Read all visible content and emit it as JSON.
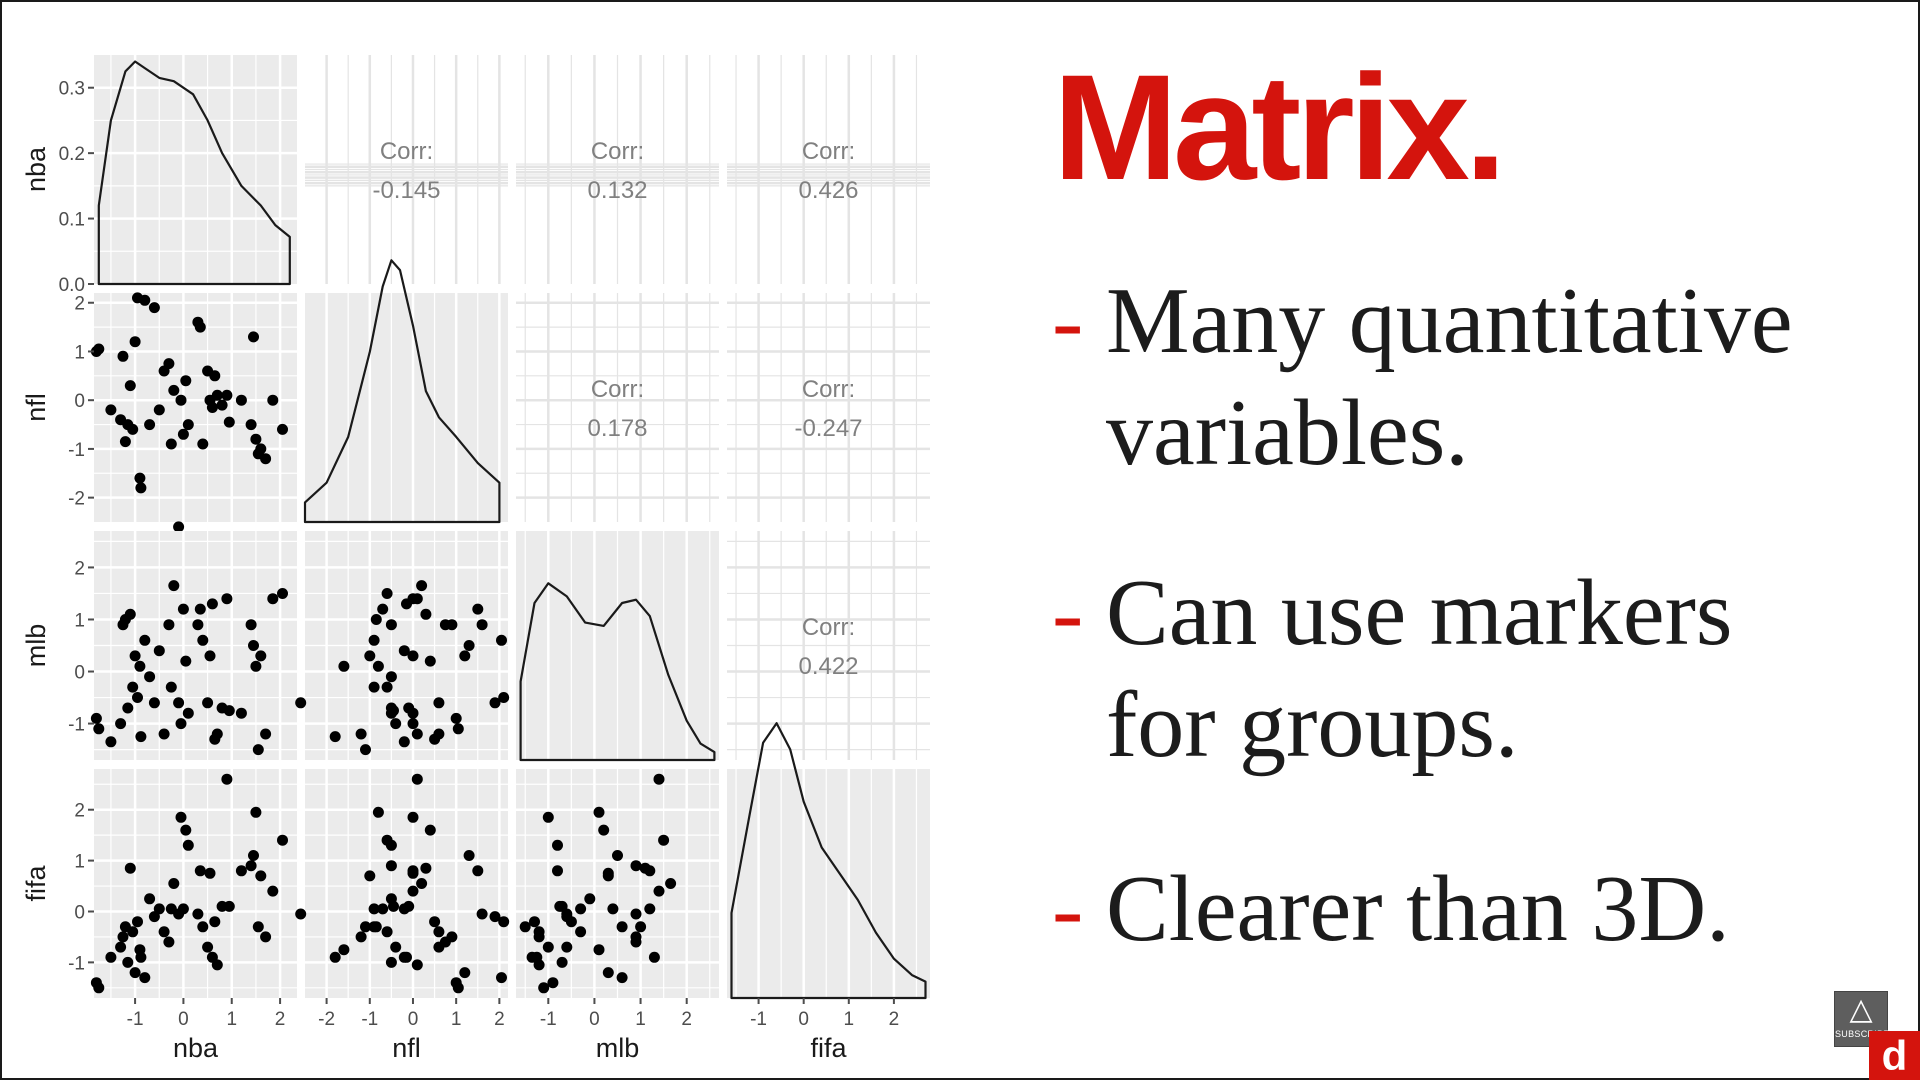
{
  "slide": {
    "heading": "Matrix.",
    "bullets": [
      {
        "dash": "-",
        "lines": [
          "Many quantitative",
          "variables."
        ]
      },
      {
        "dash": "-",
        "lines": [
          "Can use markers",
          "for groups."
        ]
      },
      {
        "dash": "-",
        "lines": [
          "Clearer than 3D."
        ]
      }
    ]
  },
  "badge": {
    "label": "SUBSCRIBE",
    "icon": "flame-icon"
  },
  "logo": {
    "letter": "d",
    "color": "#d4140d"
  },
  "colors": {
    "accent": "#d4140d",
    "panel": "#ebebeb",
    "grid": "#ffffff",
    "text": "#1c1c1c"
  },
  "chart_data": {
    "type": "scatter-matrix",
    "variables": [
      "nba",
      "nfl",
      "mlb",
      "fifa"
    ],
    "corr_label": "Corr:",
    "correlations": [
      {
        "row": "nba",
        "col": "nfl",
        "label": "-0.145"
      },
      {
        "row": "nba",
        "col": "mlb",
        "label": "0.132"
      },
      {
        "row": "nba",
        "col": "fifa",
        "label": "0.426"
      },
      {
        "row": "nfl",
        "col": "mlb",
        "label": "0.178"
      },
      {
        "row": "nfl",
        "col": "fifa",
        "label": "-0.247"
      },
      {
        "row": "mlb",
        "col": "fifa",
        "label": "0.422"
      }
    ],
    "x_ticks": {
      "nba": [
        "-1",
        "0",
        "1",
        "2"
      ],
      "nfl": [
        "-2",
        "-1",
        "0",
        "1",
        "2"
      ],
      "mlb": [
        "-1",
        "0",
        "1",
        "2"
      ],
      "fifa": [
        "-1",
        "0",
        "1",
        "2"
      ]
    },
    "y_ticks": {
      "nba": [
        "0.0",
        "0.1",
        "0.2",
        "0.3"
      ],
      "nfl": [
        "-2",
        "-1",
        "0",
        "1",
        "2"
      ],
      "mlb": [
        "-1",
        "0",
        "1",
        "2"
      ],
      "fifa": [
        "-1",
        "0",
        "1",
        "2"
      ]
    },
    "density_ylim": [
      0,
      0.35
    ],
    "ranges": {
      "nba": [
        -1.85,
        2.35
      ],
      "nfl": [
        -2.5,
        2.2
      ],
      "mlb": [
        -1.7,
        2.7
      ],
      "fifa": [
        -1.7,
        2.8
      ]
    },
    "density": {
      "nba": [
        [
          -1.75,
          0.12
        ],
        [
          -1.5,
          0.25
        ],
        [
          -1.2,
          0.325
        ],
        [
          -1.0,
          0.34
        ],
        [
          -0.8,
          0.33
        ],
        [
          -0.5,
          0.315
        ],
        [
          -0.2,
          0.31
        ],
        [
          0.2,
          0.29
        ],
        [
          0.5,
          0.25
        ],
        [
          0.8,
          0.2
        ],
        [
          1.2,
          0.15
        ],
        [
          1.6,
          0.12
        ],
        [
          1.9,
          0.09
        ],
        [
          2.2,
          0.072
        ]
      ],
      "nfl": [
        [
          -2.5,
          0.03
        ],
        [
          -2.0,
          0.06
        ],
        [
          -1.5,
          0.13
        ],
        [
          -1.0,
          0.26
        ],
        [
          -0.7,
          0.36
        ],
        [
          -0.5,
          0.4
        ],
        [
          -0.3,
          0.385
        ],
        [
          0.0,
          0.3
        ],
        [
          0.3,
          0.2
        ],
        [
          0.6,
          0.16
        ],
        [
          1.0,
          0.13
        ],
        [
          1.5,
          0.09
        ],
        [
          2.0,
          0.06
        ]
      ],
      "mlb": [
        [
          -1.6,
          0.12
        ],
        [
          -1.3,
          0.24
        ],
        [
          -1.0,
          0.27
        ],
        [
          -0.6,
          0.25
        ],
        [
          -0.2,
          0.21
        ],
        [
          0.2,
          0.205
        ],
        [
          0.6,
          0.24
        ],
        [
          0.9,
          0.245
        ],
        [
          1.2,
          0.22
        ],
        [
          1.6,
          0.13
        ],
        [
          2.0,
          0.06
        ],
        [
          2.3,
          0.025
        ],
        [
          2.6,
          0.012
        ]
      ],
      "fifa": [
        [
          -1.6,
          0.13
        ],
        [
          -1.2,
          0.28
        ],
        [
          -0.9,
          0.39
        ],
        [
          -0.6,
          0.42
        ],
        [
          -0.3,
          0.38
        ],
        [
          0.0,
          0.3
        ],
        [
          0.4,
          0.23
        ],
        [
          0.8,
          0.19
        ],
        [
          1.2,
          0.15
        ],
        [
          1.6,
          0.1
        ],
        [
          2.0,
          0.06
        ],
        [
          2.4,
          0.035
        ],
        [
          2.7,
          0.025
        ]
      ]
    },
    "observations": [
      {
        "nba": -1.8,
        "nfl": 1.0,
        "mlb": -0.9,
        "fifa": -1.4
      },
      {
        "nba": -1.75,
        "nfl": 1.05,
        "mlb": -1.1,
        "fifa": -1.5
      },
      {
        "nba": -1.5,
        "nfl": -0.2,
        "mlb": -1.35,
        "fifa": -0.9
      },
      {
        "nba": -1.3,
        "nfl": -0.4,
        "mlb": -1.0,
        "fifa": -0.7
      },
      {
        "nba": -1.25,
        "nfl": 0.9,
        "mlb": 0.9,
        "fifa": -0.5
      },
      {
        "nba": -1.2,
        "nfl": -0.85,
        "mlb": 1.0,
        "fifa": -0.3
      },
      {
        "nba": -1.15,
        "nfl": -0.5,
        "mlb": -0.7,
        "fifa": -1.0
      },
      {
        "nba": -1.1,
        "nfl": 0.3,
        "mlb": 1.1,
        "fifa": 0.85
      },
      {
        "nba": -1.05,
        "nfl": -0.6,
        "mlb": -0.3,
        "fifa": -0.4
      },
      {
        "nba": -1.0,
        "nfl": 1.2,
        "mlb": 0.3,
        "fifa": -1.2
      },
      {
        "nba": -0.95,
        "nfl": 2.1,
        "mlb": -0.5,
        "fifa": -0.2
      },
      {
        "nba": -0.9,
        "nfl": -1.6,
        "mlb": 0.1,
        "fifa": -0.75
      },
      {
        "nba": -0.88,
        "nfl": -1.8,
        "mlb": -1.25,
        "fifa": -0.9
      },
      {
        "nba": -0.8,
        "nfl": 2.05,
        "mlb": 0.6,
        "fifa": -1.3
      },
      {
        "nba": -0.7,
        "nfl": -0.5,
        "mlb": -0.1,
        "fifa": 0.25
      },
      {
        "nba": -0.6,
        "nfl": 1.9,
        "mlb": -0.6,
        "fifa": -0.1
      },
      {
        "nba": -0.5,
        "nfl": -0.2,
        "mlb": 0.4,
        "fifa": 0.05
      },
      {
        "nba": -0.4,
        "nfl": 0.6,
        "mlb": -1.2,
        "fifa": -0.4
      },
      {
        "nba": -0.3,
        "nfl": 0.75,
        "mlb": 0.9,
        "fifa": -0.6
      },
      {
        "nba": -0.25,
        "nfl": -0.9,
        "mlb": -0.3,
        "fifa": 0.05
      },
      {
        "nba": -0.2,
        "nfl": 0.2,
        "mlb": 1.65,
        "fifa": 0.55
      },
      {
        "nba": -0.1,
        "nfl": -2.6,
        "mlb": -0.6,
        "fifa": -0.05
      },
      {
        "nba": -0.05,
        "nfl": 0.0,
        "mlb": -1.0,
        "fifa": 1.85
      },
      {
        "nba": 0.0,
        "nfl": -0.7,
        "mlb": 1.2,
        "fifa": 0.05
      },
      {
        "nba": 0.05,
        "nfl": 0.4,
        "mlb": 0.2,
        "fifa": 1.6
      },
      {
        "nba": 0.1,
        "nfl": -0.5,
        "mlb": -0.8,
        "fifa": 1.3
      },
      {
        "nba": 0.3,
        "nfl": 1.6,
        "mlb": 0.9,
        "fifa": -0.05
      },
      {
        "nba": 0.35,
        "nfl": 1.5,
        "mlb": 1.2,
        "fifa": 0.8
      },
      {
        "nba": 0.4,
        "nfl": -0.9,
        "mlb": 0.6,
        "fifa": -0.3
      },
      {
        "nba": 0.5,
        "nfl": 0.6,
        "mlb": -0.6,
        "fifa": -0.7
      },
      {
        "nba": 0.55,
        "nfl": 0.0,
        "mlb": 0.3,
        "fifa": 0.75
      },
      {
        "nba": 0.6,
        "nfl": -0.15,
        "mlb": 1.3,
        "fifa": -0.9
      },
      {
        "nba": 0.65,
        "nfl": 0.5,
        "mlb": -1.3,
        "fifa": -0.2
      },
      {
        "nba": 0.7,
        "nfl": 0.1,
        "mlb": -1.2,
        "fifa": -1.05
      },
      {
        "nba": 0.8,
        "nfl": -0.1,
        "mlb": -0.7,
        "fifa": 0.1
      },
      {
        "nba": 0.9,
        "nfl": 0.1,
        "mlb": 1.4,
        "fifa": 2.6
      },
      {
        "nba": 0.95,
        "nfl": -0.45,
        "mlb": -0.75,
        "fifa": 0.1
      },
      {
        "nba": 1.2,
        "nfl": 0.0,
        "mlb": -0.8,
        "fifa": 0.8
      },
      {
        "nba": 1.4,
        "nfl": -0.5,
        "mlb": 0.9,
        "fifa": 0.9
      },
      {
        "nba": 1.45,
        "nfl": 1.3,
        "mlb": 0.5,
        "fifa": 1.1
      },
      {
        "nba": 1.5,
        "nfl": -0.8,
        "mlb": 0.1,
        "fifa": 1.95
      },
      {
        "nba": 1.55,
        "nfl": -1.1,
        "mlb": -1.5,
        "fifa": -0.3
      },
      {
        "nba": 1.6,
        "nfl": -1.0,
        "mlb": 0.3,
        "fifa": 0.7
      },
      {
        "nba": 1.7,
        "nfl": -1.2,
        "mlb": -1.2,
        "fifa": -0.5
      },
      {
        "nba": 1.85,
        "nfl": 0.0,
        "mlb": 1.4,
        "fifa": 0.4
      },
      {
        "nba": 2.05,
        "nfl": -0.6,
        "mlb": 1.5,
        "fifa": 1.4
      }
    ]
  }
}
